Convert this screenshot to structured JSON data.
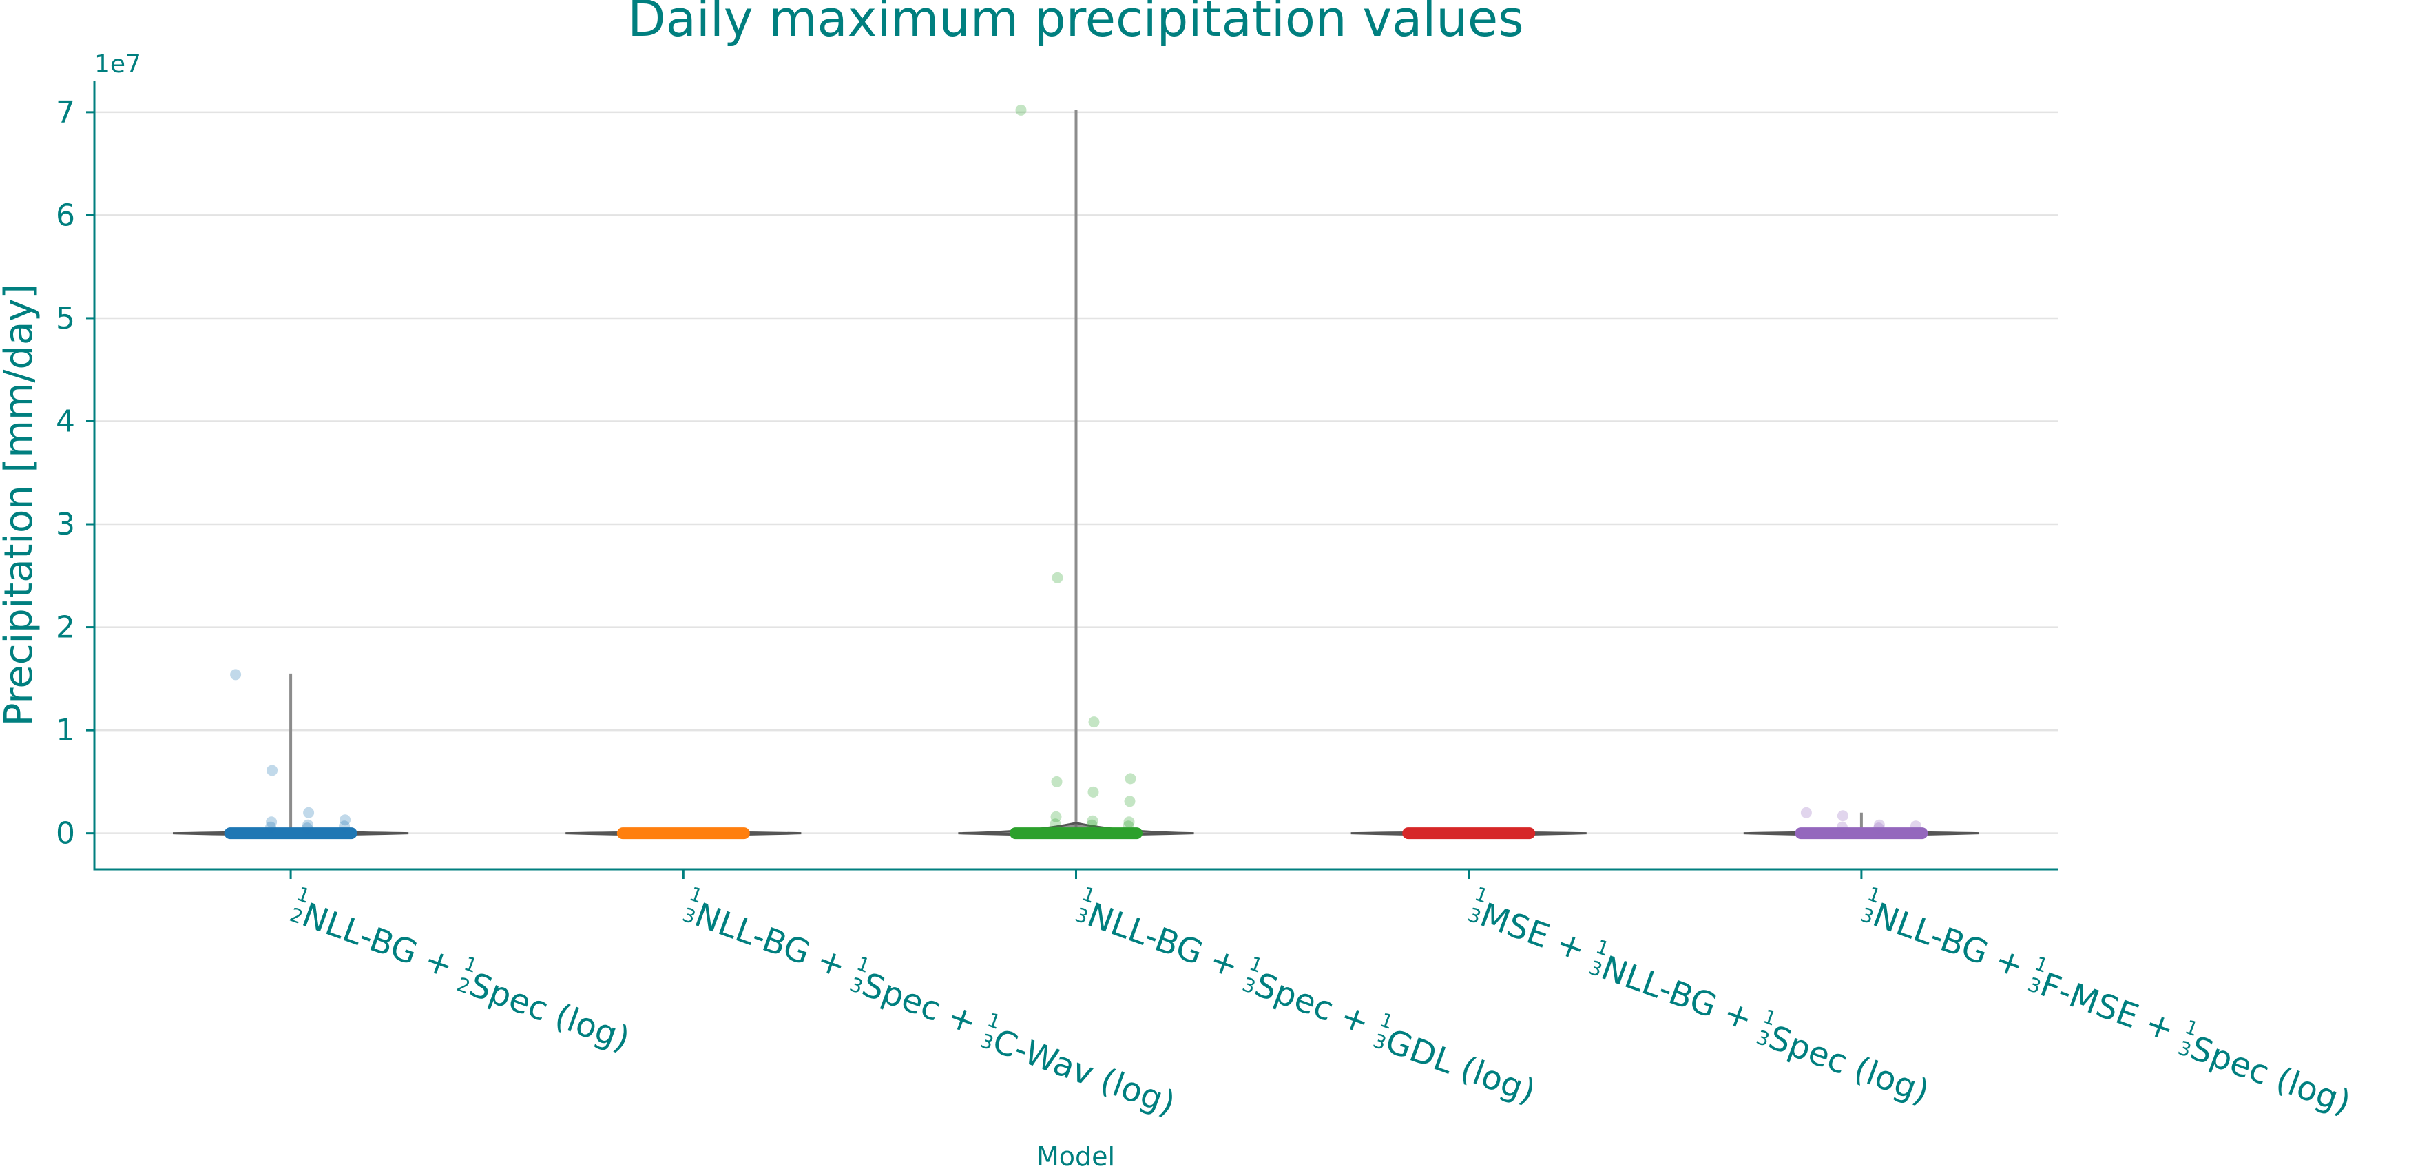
{
  "chart_data": {
    "type": "violin",
    "title": "Daily maximum precipitation values",
    "xlabel": "Model",
    "ylabel": "Precipitation [mm/day]",
    "y_offset_label": "1e7",
    "y_tick_labels": [
      "0",
      "1",
      "2",
      "3",
      "4",
      "5",
      "6",
      "7"
    ],
    "y_ticks": [
      0,
      10000000,
      20000000,
      30000000,
      40000000,
      50000000,
      60000000,
      70000000
    ],
    "ylim": [
      -3500000,
      73000000
    ],
    "grid": "horizontal",
    "legend": "none",
    "categories": [
      {
        "name": "1/2NLL-BG + 1/2Spec (log)",
        "label_parts": [
          [
            "f",
            "1",
            "2"
          ],
          [
            "t",
            "NLL-BG + "
          ],
          [
            "f",
            "1",
            "2"
          ],
          [
            "t",
            "Spec (log)"
          ]
        ],
        "color": "#1f77b4",
        "whisker_max": 15500000,
        "violin_peak": 150000,
        "outliers": [
          15400000,
          6100000,
          2000000,
          1300000,
          1100000,
          800000,
          700000,
          600000,
          500000
        ]
      },
      {
        "name": "1/3NLL-BG + 1/3Spec + 1/3C-Wav (log)",
        "label_parts": [
          [
            "f",
            "1",
            "3"
          ],
          [
            "t",
            "NLL-BG + "
          ],
          [
            "f",
            "1",
            "3"
          ],
          [
            "t",
            "Spec + "
          ],
          [
            "f",
            "1",
            "3"
          ],
          [
            "t",
            "C-Wav (log)"
          ]
        ],
        "color": "#ff7f0e",
        "whisker_max": 100000,
        "violin_peak": 80000,
        "outliers": []
      },
      {
        "name": "1/3NLL-BG + 1/3Spec + 1/3GDL (log)",
        "label_parts": [
          [
            "f",
            "1",
            "3"
          ],
          [
            "t",
            "NLL-BG + "
          ],
          [
            "f",
            "1",
            "3"
          ],
          [
            "t",
            "Spec + "
          ],
          [
            "f",
            "1",
            "3"
          ],
          [
            "t",
            "GDL (log)"
          ]
        ],
        "color": "#2ca02c",
        "whisker_max": 70200000,
        "violin_peak": 1000000,
        "outliers": [
          70200000,
          24800000,
          10800000,
          5300000,
          5000000,
          4000000,
          3100000,
          1600000,
          1200000,
          1100000,
          900000,
          800000,
          700000
        ]
      },
      {
        "name": "1/3MSE + 1/3NLL-BG + 1/3Spec (log)",
        "label_parts": [
          [
            "f",
            "1",
            "3"
          ],
          [
            "t",
            "MSE + "
          ],
          [
            "f",
            "1",
            "3"
          ],
          [
            "t",
            "NLL-BG + "
          ],
          [
            "f",
            "1",
            "3"
          ],
          [
            "t",
            "Spec (log)"
          ]
        ],
        "color": "#d62728",
        "whisker_max": 100000,
        "violin_peak": 60000,
        "outliers": []
      },
      {
        "name": "1/3NLL-BG + 1/3F-MSE + 1/3Spec (log)",
        "label_parts": [
          [
            "f",
            "1",
            "3"
          ],
          [
            "t",
            "NLL-BG + "
          ],
          [
            "f",
            "1",
            "3"
          ],
          [
            "t",
            "F-MSE + "
          ],
          [
            "f",
            "1",
            "3"
          ],
          [
            "t",
            "Spec (log)"
          ]
        ],
        "color": "#9467bd",
        "whisker_max": 2000000,
        "violin_peak": 120000,
        "outliers": [
          2000000,
          1700000,
          800000,
          700000,
          600000,
          500000
        ]
      }
    ]
  }
}
